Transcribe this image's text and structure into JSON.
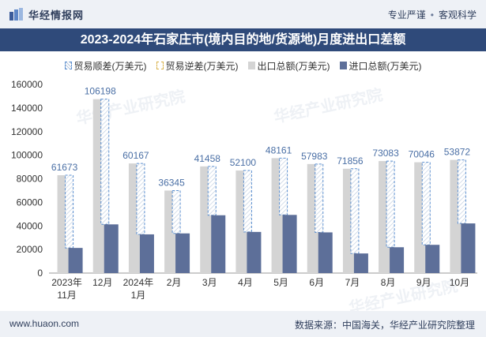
{
  "header": {
    "brand": "华经情报网",
    "tag1": "专业严谨",
    "tag2": "客观科学"
  },
  "title": "2023-2024年石家庄市(境内目的地/货源地)月度进出口差额",
  "legend": {
    "surplus": "贸易顺差(万美元)",
    "deficit": "贸易逆差(万美元)",
    "export": "出口总额(万美元)",
    "import": "进口总额(万美元)"
  },
  "footer": {
    "url": "www.huaon.com",
    "source": "数据来源：中国海关，华经产业研究院整理"
  },
  "watermark": "华经产业研究院",
  "colors": {
    "export": "#d4d4d4",
    "import": "#5d6f99",
    "surplus_border": "#5b8fd0",
    "label": "#4a6fa5"
  },
  "chart_data": {
    "type": "bar",
    "categories": [
      "2023年\n11月",
      "12月",
      "2024年\n1月",
      "2月",
      "3月",
      "4月",
      "5月",
      "6月",
      "7月",
      "8月",
      "9月",
      "10月"
    ],
    "series": [
      {
        "name": "出口总额(万美元)",
        "values": [
          83000,
          147500,
          93000,
          70000,
          90500,
          87000,
          97500,
          92500,
          88500,
          95000,
          94000,
          96000
        ]
      },
      {
        "name": "进口总额(万美元)",
        "values": [
          21327,
          41302,
          32833,
          33655,
          49042,
          34900,
          49339,
          34517,
          16644,
          21917,
          23954,
          42128
        ]
      },
      {
        "name": "贸易顺差(万美元)",
        "values": [
          61673,
          106198,
          60167,
          36345,
          41458,
          52100,
          48161,
          57983,
          71856,
          73083,
          70046,
          53872
        ]
      }
    ],
    "ylim": [
      0,
      160000
    ],
    "yticks": [
      0,
      20000,
      40000,
      60000,
      80000,
      100000,
      120000,
      140000,
      160000
    ],
    "grid": false,
    "legend_position": "top"
  }
}
